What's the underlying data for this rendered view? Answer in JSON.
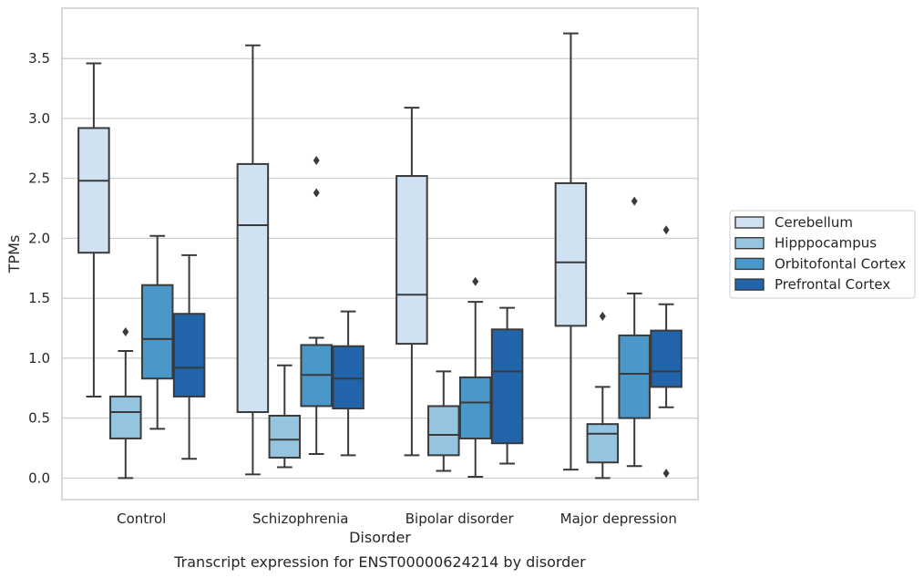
{
  "chart_data": {
    "type": "box",
    "title": "Transcript expression for ENST00000624214 by disorder",
    "xlabel": "Disorder",
    "ylabel": "TPMs",
    "ylim": [
      -0.18,
      3.92
    ],
    "yticks": [
      "0.0",
      "0.5",
      "1.0",
      "1.5",
      "2.0",
      "2.5",
      "3.0",
      "3.5"
    ],
    "grid": true,
    "legend_position": "right",
    "categories": [
      "Control",
      "Schizophrenia",
      "Bipolar disorder",
      "Major depression"
    ],
    "series": [
      {
        "name": "Cerebellum",
        "color": "#d0e1f2",
        "boxes": [
          {
            "whislo": 0.68,
            "q1": 1.88,
            "med": 2.48,
            "q3": 2.92,
            "whishi": 3.46,
            "fliers": []
          },
          {
            "whislo": 0.03,
            "q1": 0.55,
            "med": 2.11,
            "q3": 2.62,
            "whishi": 3.61,
            "fliers": []
          },
          {
            "whislo": 0.19,
            "q1": 1.12,
            "med": 1.53,
            "q3": 2.52,
            "whishi": 3.09,
            "fliers": []
          },
          {
            "whislo": 0.07,
            "q1": 1.27,
            "med": 1.8,
            "q3": 2.46,
            "whishi": 3.71,
            "fliers": []
          }
        ]
      },
      {
        "name": "Hipppocampus",
        "color": "#94c4df",
        "boxes": [
          {
            "whislo": 0.0,
            "q1": 0.33,
            "med": 0.55,
            "q3": 0.68,
            "whishi": 1.06,
            "fliers": [
              1.22
            ]
          },
          {
            "whislo": 0.09,
            "q1": 0.17,
            "med": 0.32,
            "q3": 0.52,
            "whishi": 0.94,
            "fliers": []
          },
          {
            "whislo": 0.06,
            "q1": 0.19,
            "med": 0.36,
            "q3": 0.6,
            "whishi": 0.89,
            "fliers": []
          },
          {
            "whislo": 0.0,
            "q1": 0.13,
            "med": 0.37,
            "q3": 0.45,
            "whishi": 0.76,
            "fliers": [
              1.35
            ]
          }
        ]
      },
      {
        "name": "Orbitofontal Cortex",
        "color": "#4a98c9",
        "boxes": [
          {
            "whislo": 0.41,
            "q1": 0.83,
            "med": 1.16,
            "q3": 1.61,
            "whishi": 2.02,
            "fliers": []
          },
          {
            "whislo": 0.2,
            "q1": 0.6,
            "med": 0.86,
            "q3": 1.11,
            "whishi": 1.17,
            "fliers": [
              2.38,
              2.65
            ]
          },
          {
            "whislo": 0.01,
            "q1": 0.33,
            "med": 0.63,
            "q3": 0.84,
            "whishi": 1.47,
            "fliers": [
              1.64
            ]
          },
          {
            "whislo": 0.1,
            "q1": 0.5,
            "med": 0.87,
            "q3": 1.19,
            "whishi": 1.54,
            "fliers": [
              2.31
            ]
          }
        ]
      },
      {
        "name": "Prefrontal Cortex",
        "color": "#2264a9",
        "boxes": [
          {
            "whislo": 0.16,
            "q1": 0.68,
            "med": 0.92,
            "q3": 1.37,
            "whishi": 1.86,
            "fliers": []
          },
          {
            "whislo": 0.19,
            "q1": 0.58,
            "med": 0.83,
            "q3": 1.1,
            "whishi": 1.39,
            "fliers": []
          },
          {
            "whislo": 0.12,
            "q1": 0.29,
            "med": 0.89,
            "q3": 1.24,
            "whishi": 1.42,
            "fliers": []
          },
          {
            "whislo": 0.59,
            "q1": 0.76,
            "med": 0.89,
            "q3": 1.23,
            "whishi": 1.45,
            "fliers": [
              0.04,
              2.07
            ]
          }
        ]
      }
    ]
  }
}
